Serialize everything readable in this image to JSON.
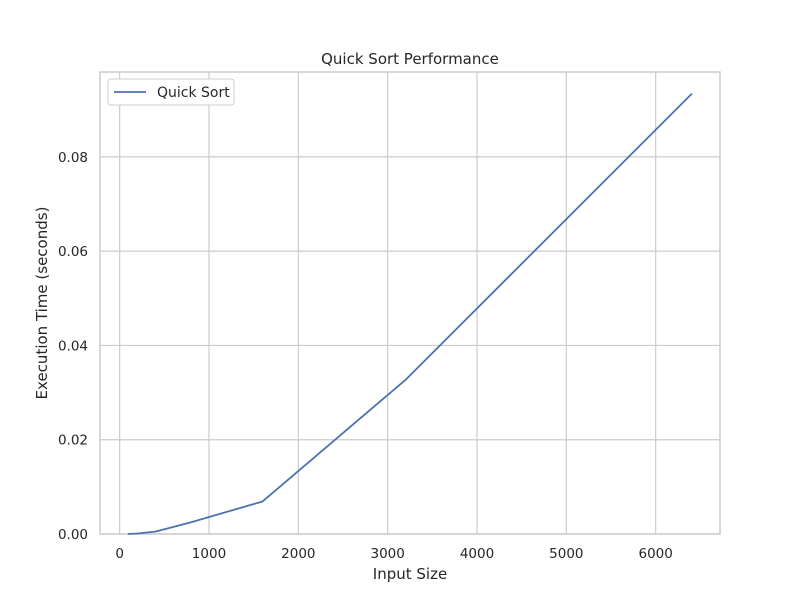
{
  "chart_data": {
    "type": "line",
    "title": "Quick Sort Performance",
    "xlabel": "Input Size",
    "ylabel": "Execution Time (seconds)",
    "xlim": [
      -220,
      6720
    ],
    "ylim": [
      0,
      0.098
    ],
    "xticks": [
      0,
      1000,
      2000,
      3000,
      4000,
      5000,
      6000
    ],
    "yticks": [
      0.0,
      0.02,
      0.04,
      0.06,
      0.08
    ],
    "xtick_labels": [
      "0",
      "1000",
      "2000",
      "3000",
      "4000",
      "5000",
      "6000"
    ],
    "ytick_labels": [
      "0.00",
      "0.02",
      "0.04",
      "0.06",
      "0.08"
    ],
    "grid": true,
    "legend_position": "top-left",
    "series": [
      {
        "name": "Quick Sort",
        "color": "#4c72b0",
        "x": [
          100,
          200,
          400,
          800,
          1600,
          3200,
          6400
        ],
        "y": [
          2e-05,
          0.0001,
          0.0005,
          0.0025,
          0.0069,
          0.0327,
          0.0933
        ]
      }
    ]
  }
}
